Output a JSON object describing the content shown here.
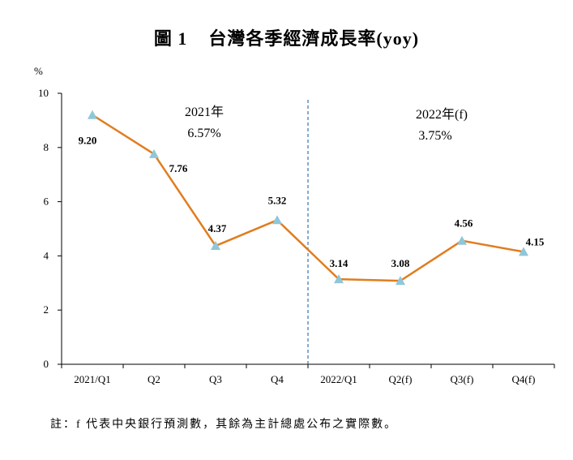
{
  "page": {
    "figure_number": "圖 1",
    "title": "台灣各季經濟成長率(yoy)",
    "note": "註：f 代表中央銀行預測數，其餘為主計總處公布之實際數。"
  },
  "colors": {
    "line": "#E07D1F",
    "marker": "#8FC7D9",
    "axis": "#000000",
    "divider": "#2E75B6"
  },
  "chart_data": {
    "type": "line",
    "title": "台灣各季經濟成長率(yoy)",
    "ylabel": "%",
    "xlabel": "",
    "ylim": [
      0,
      10
    ],
    "yticks": [
      0,
      2,
      4,
      6,
      8,
      10
    ],
    "grid": false,
    "categories": [
      "2021/Q1",
      "Q2",
      "Q3",
      "Q4",
      "2022/Q1",
      "Q2(f)",
      "Q3(f)",
      "Q4(f)"
    ],
    "series": [
      {
        "name": "經濟成長率",
        "values": [
          9.2,
          7.76,
          4.37,
          5.32,
          3.14,
          3.08,
          4.56,
          4.15
        ],
        "labels": [
          "9.20",
          "7.76",
          "4.37",
          "5.32",
          "3.14",
          "3.08",
          "4.56",
          "4.15"
        ]
      }
    ],
    "annotations": [
      {
        "year": "2021年",
        "rate": "6.57%"
      },
      {
        "year": "2022年(f)",
        "rate": "3.75%"
      }
    ],
    "divider_after_category": "Q4"
  }
}
